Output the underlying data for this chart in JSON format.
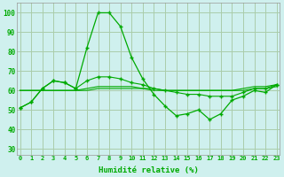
{
  "xlabel": "Humidité relative (%)",
  "background_color": "#cff0ee",
  "grid_color": "#aaccaa",
  "line_color": "#00aa00",
  "ylim": [
    27,
    105
  ],
  "xlim": [
    -0.3,
    23.3
  ],
  "yticks": [
    30,
    40,
    50,
    60,
    70,
    80,
    90,
    100
  ],
  "xticks": [
    0,
    1,
    2,
    3,
    4,
    5,
    6,
    7,
    8,
    9,
    10,
    11,
    12,
    13,
    14,
    15,
    16,
    17,
    18,
    19,
    20,
    21,
    22,
    23
  ],
  "series": [
    [
      51,
      54,
      61,
      65,
      64,
      61,
      82,
      100,
      100,
      93,
      77,
      66,
      58,
      52,
      47,
      48,
      50,
      45,
      48,
      55,
      57,
      60,
      59,
      63
    ],
    [
      51,
      54,
      61,
      65,
      64,
      61,
      65,
      67,
      67,
      66,
      64,
      63,
      61,
      60,
      59,
      58,
      58,
      57,
      57,
      57,
      59,
      61,
      61,
      63
    ],
    [
      60,
      60,
      60,
      60,
      60,
      60,
      61,
      62,
      62,
      62,
      62,
      61,
      61,
      60,
      60,
      60,
      60,
      60,
      60,
      60,
      61,
      62,
      62,
      63
    ],
    [
      60,
      60,
      60,
      60,
      60,
      60,
      60,
      61,
      61,
      61,
      61,
      61,
      60,
      60,
      60,
      60,
      60,
      60,
      60,
      60,
      60,
      61,
      61,
      62
    ]
  ]
}
